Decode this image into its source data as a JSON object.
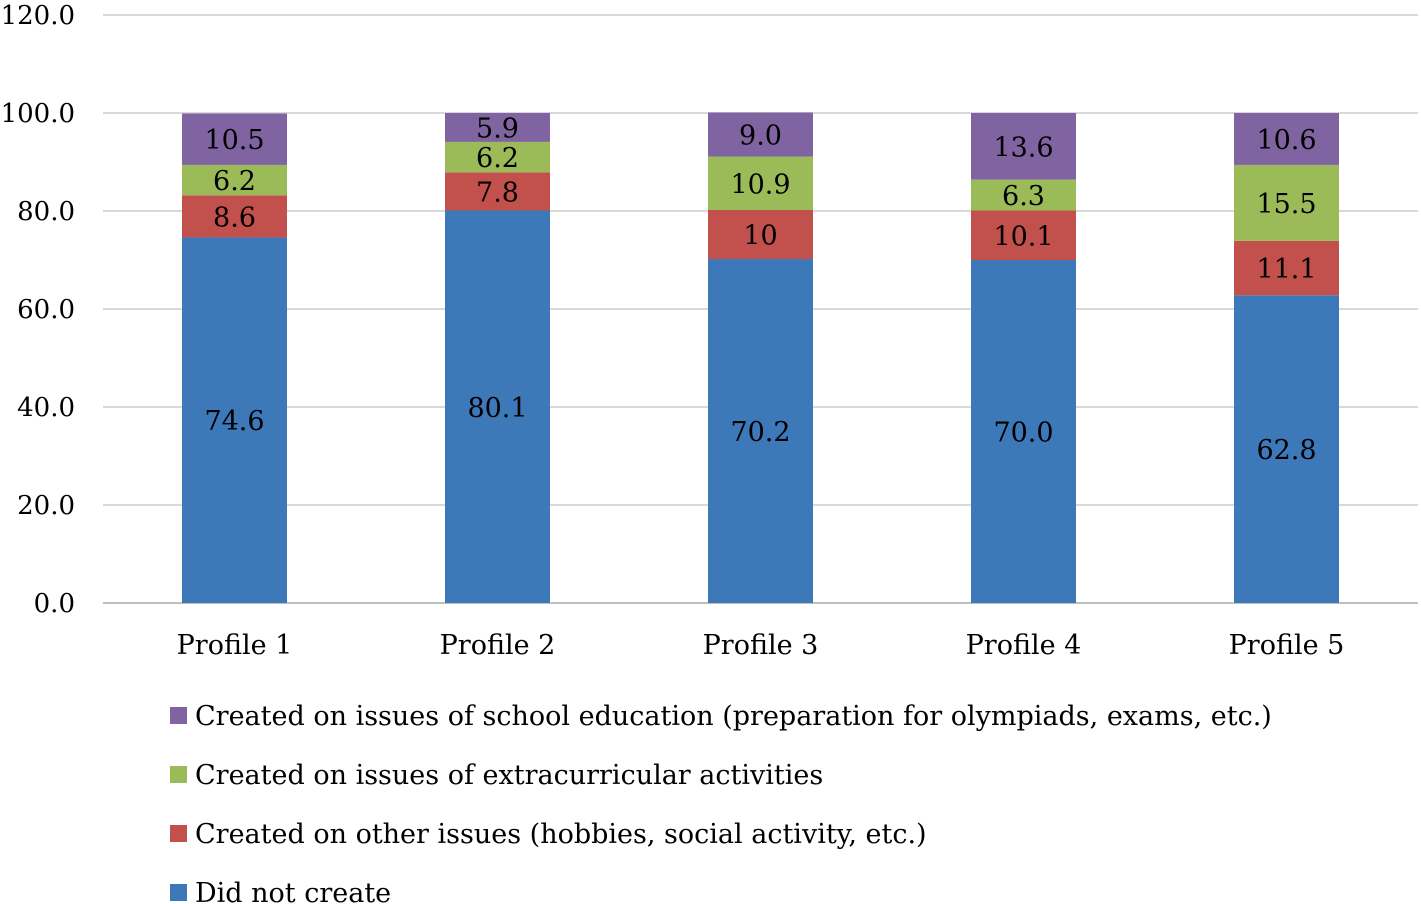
{
  "chart_data": {
    "type": "bar",
    "stacked": true,
    "title": "",
    "xlabel": "",
    "ylabel": "",
    "ylim": [
      0,
      120
    ],
    "yticks": [
      "0.0",
      "20.0",
      "40.0",
      "60.0",
      "80.0",
      "100.0",
      "120.0"
    ],
    "ytick_values": [
      0,
      20,
      40,
      60,
      80,
      100,
      120
    ],
    "grid": true,
    "legend_position": "bottom",
    "categories": [
      "Profile 1",
      "Profile 2",
      "Profile 3",
      "Profile 4",
      "Profile 5"
    ],
    "series": [
      {
        "name": "Did not create",
        "color": "#3D78B9",
        "values": [
          74.6,
          80.1,
          70.2,
          70.0,
          62.8
        ],
        "labels": [
          "74.6",
          "80.1",
          "70.2",
          "70.0",
          "62.8"
        ]
      },
      {
        "name": "Created on other issues (hobbies, social activity, etc.)",
        "color": "#C2504D",
        "values": [
          8.6,
          7.8,
          10,
          10.1,
          11.1
        ],
        "labels": [
          "8.6",
          "7.8",
          "10",
          "10.1",
          "11.1"
        ]
      },
      {
        "name": "Created on issues of extracurricular activities",
        "color": "#9BBB59",
        "values": [
          6.2,
          6.2,
          10.9,
          6.3,
          15.5
        ],
        "labels": [
          "6.2",
          "6.2",
          "10.9",
          "6.3",
          "15.5"
        ]
      },
      {
        "name": "Created on issues of school education (preparation for olympiads, exams, etc.)",
        "color": "#8064A2",
        "values": [
          10.5,
          5.9,
          9.0,
          13.6,
          10.6
        ],
        "labels": [
          "10.5",
          "5.9",
          "9.0",
          "13.6",
          "10.6"
        ]
      }
    ],
    "legend_order": [
      3,
      2,
      1,
      0
    ]
  }
}
